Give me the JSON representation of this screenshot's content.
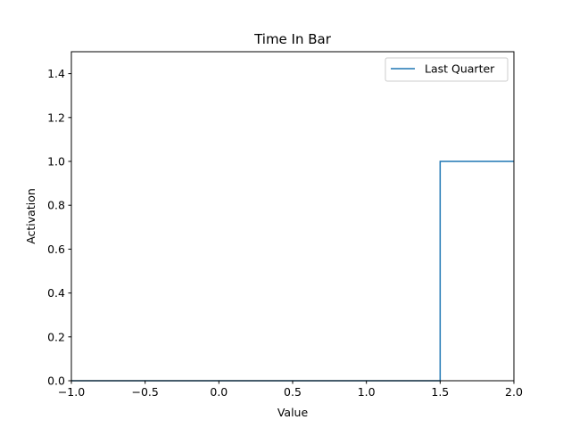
{
  "chart_data": {
    "type": "line",
    "title": "Time In Bar",
    "xlabel": "Value",
    "ylabel": "Activation",
    "xlim": [
      -1.0,
      2.0
    ],
    "ylim": [
      0.0,
      1.5
    ],
    "xticks": [
      -1.0,
      -0.5,
      0.0,
      0.5,
      1.0,
      1.5,
      2.0
    ],
    "xtick_labels": [
      "−1.0",
      "−0.5",
      "0.0",
      "0.5",
      "1.0",
      "1.5",
      "2.0"
    ],
    "yticks": [
      0.0,
      0.2,
      0.4,
      0.6,
      0.8,
      1.0,
      1.2,
      1.4
    ],
    "ytick_labels": [
      "0.0",
      "0.2",
      "0.4",
      "0.6",
      "0.8",
      "1.0",
      "1.2",
      "1.4"
    ],
    "grid": false,
    "legend_position": "top-right",
    "series": [
      {
        "name": "Last Quarter",
        "color": "#1f77b4",
        "x": [
          -1.0,
          1.5,
          1.5,
          2.0
        ],
        "y": [
          0.0,
          0.0,
          1.0,
          1.0
        ]
      }
    ]
  }
}
